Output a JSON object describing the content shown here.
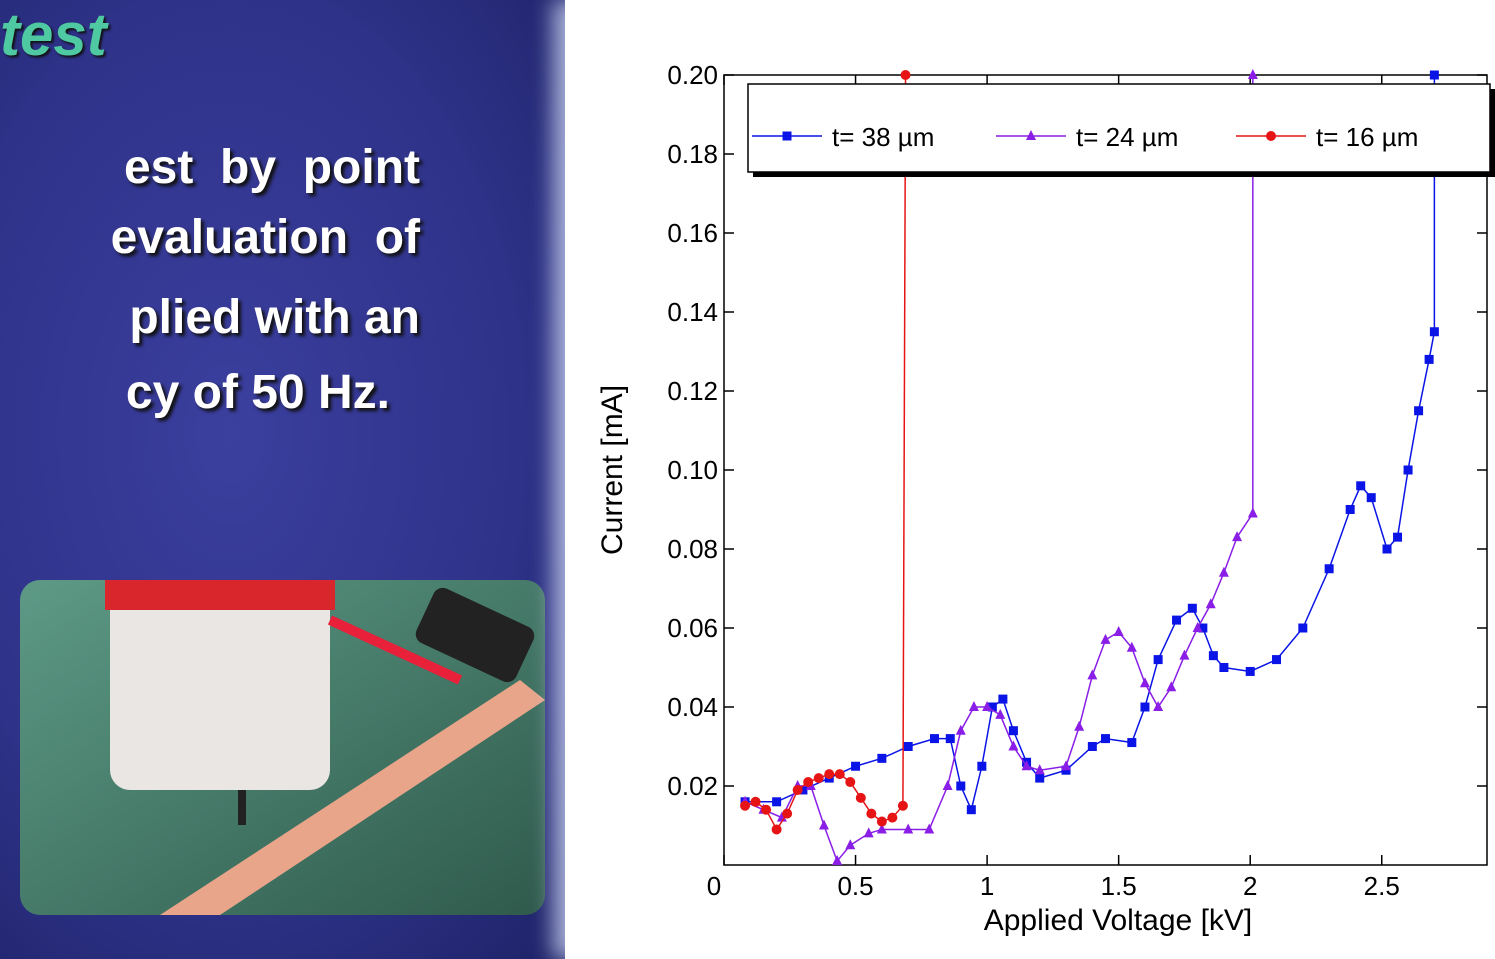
{
  "slide": {
    "title": "test",
    "body": [
      "est  by  point",
      "evaluation  of",
      "plied with an",
      "cy of 50 Hz."
    ]
  },
  "chart_data": {
    "type": "line",
    "x_label": "Applied Voltage [kV]",
    "y_label": "Current [mA]",
    "xlim": [
      0,
      2.9
    ],
    "ylim": [
      0,
      0.2
    ],
    "xticks": [
      0,
      0.5,
      1,
      1.5,
      2,
      2.5
    ],
    "yticks": [
      {
        "value": 0.02,
        "label": "0.02"
      },
      {
        "value": 0.04,
        "label": "0.04"
      },
      {
        "value": 0.06,
        "label": "0.06"
      },
      {
        "value": 0.08,
        "label": "0.08"
      },
      {
        "value": 0.1,
        "label": "0.10"
      },
      {
        "value": 0.12,
        "label": "0.12"
      },
      {
        "value": 0.14,
        "label": "0.14"
      },
      {
        "value": 0.16,
        "label": "0.16"
      },
      {
        "value": 0.18,
        "label": "0.18"
      },
      {
        "value": 0.2,
        "label": "0.20"
      }
    ],
    "series": [
      {
        "name": "t= 38 µm",
        "color": "#0a14e6",
        "marker": "square",
        "x": [
          0.08,
          0.2,
          0.3,
          0.4,
          0.5,
          0.6,
          0.7,
          0.8,
          0.86,
          0.9,
          0.94,
          0.98,
          1.02,
          1.06,
          1.1,
          1.15,
          1.2,
          1.3,
          1.4,
          1.45,
          1.55,
          1.6,
          1.65,
          1.72,
          1.78,
          1.82,
          1.86,
          1.9,
          2.0,
          2.1,
          2.2,
          2.3,
          2.38,
          2.42,
          2.46,
          2.52,
          2.56,
          2.6,
          2.64,
          2.68,
          2.7,
          2.7
        ],
        "values": [
          0.016,
          0.016,
          0.019,
          0.022,
          0.025,
          0.027,
          0.03,
          0.032,
          0.032,
          0.02,
          0.014,
          0.025,
          0.04,
          0.042,
          0.034,
          0.026,
          0.022,
          0.024,
          0.03,
          0.032,
          0.031,
          0.04,
          0.052,
          0.062,
          0.065,
          0.06,
          0.053,
          0.05,
          0.049,
          0.052,
          0.06,
          0.075,
          0.09,
          0.096,
          0.093,
          0.08,
          0.083,
          0.1,
          0.115,
          0.128,
          0.135,
          0.2
        ]
      },
      {
        "name": "t= 24 µm",
        "color": "#8a1ee6",
        "marker": "triangle",
        "x": [
          0.08,
          0.15,
          0.22,
          0.28,
          0.33,
          0.38,
          0.43,
          0.48,
          0.55,
          0.6,
          0.7,
          0.78,
          0.85,
          0.9,
          0.95,
          1.0,
          1.05,
          1.1,
          1.15,
          1.2,
          1.3,
          1.35,
          1.4,
          1.45,
          1.5,
          1.55,
          1.6,
          1.65,
          1.7,
          1.75,
          1.8,
          1.85,
          1.9,
          1.95,
          2.01,
          2.01
        ],
        "values": [
          0.016,
          0.014,
          0.012,
          0.02,
          0.02,
          0.01,
          0.001,
          0.005,
          0.008,
          0.009,
          0.009,
          0.009,
          0.02,
          0.034,
          0.04,
          0.04,
          0.038,
          0.03,
          0.025,
          0.024,
          0.025,
          0.035,
          0.048,
          0.057,
          0.059,
          0.055,
          0.046,
          0.04,
          0.045,
          0.053,
          0.06,
          0.066,
          0.074,
          0.083,
          0.089,
          0.2
        ]
      },
      {
        "name": "t= 16 µm",
        "color": "#e61414",
        "marker": "circle",
        "x": [
          0.08,
          0.12,
          0.16,
          0.2,
          0.24,
          0.28,
          0.32,
          0.36,
          0.4,
          0.44,
          0.48,
          0.52,
          0.56,
          0.6,
          0.64,
          0.68,
          0.69
        ],
        "values": [
          0.015,
          0.016,
          0.014,
          0.009,
          0.013,
          0.019,
          0.021,
          0.022,
          0.023,
          0.023,
          0.021,
          0.017,
          0.013,
          0.011,
          0.012,
          0.015,
          0.2
        ]
      }
    ]
  }
}
